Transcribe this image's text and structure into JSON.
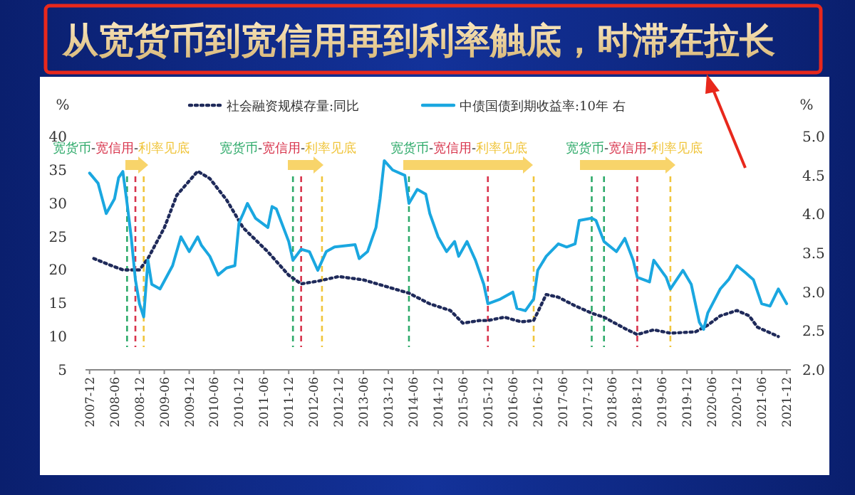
{
  "chart_data": {
    "type": "line",
    "title": "从宽货币到宽信用再到利率触底，时滞在拉长",
    "ylabel": "%",
    "y2label": "%",
    "xlim": [
      "2007-11",
      "2022-01"
    ],
    "xticks": [
      "2007-12",
      "2008-06",
      "2008-12",
      "2009-06",
      "2009-12",
      "2010-06",
      "2010-12",
      "2011-06",
      "2011-12",
      "2012-06",
      "2012-12",
      "2013-06",
      "2013-12",
      "2014-06",
      "2014-12",
      "2015-06",
      "2015-12",
      "2016-06",
      "2016-12",
      "2017-06",
      "2017-12",
      "2018-06",
      "2018-12",
      "2019-06",
      "2019-12",
      "2020-06",
      "2020-12",
      "2021-06",
      "2021-12"
    ],
    "ylim": [
      5,
      40
    ],
    "yticks": [
      5,
      10,
      15,
      20,
      25,
      30,
      35,
      40
    ],
    "y2lim": [
      2,
      5
    ],
    "y2ticks": [
      {
        "value": 2,
        "label": "2.0"
      },
      {
        "value": 2.5,
        "label": "2.5"
      },
      {
        "value": 3,
        "label": "3.0"
      },
      {
        "value": 3.5,
        "label": "3.5"
      },
      {
        "value": 4,
        "label": "4.0"
      },
      {
        "value": 4.5,
        "label": "4.5"
      },
      {
        "value": 5,
        "label": "5.0"
      }
    ],
    "legend": "top",
    "grid": false,
    "series": [
      {
        "name": "社会融资规模存量:同比",
        "color": "#1f2a5a",
        "line_style": "dotted",
        "x": [
          "2008-01",
          "2008-05",
          "2008-08",
          "2008-12",
          "2009-02",
          "2009-06",
          "2009-09",
          "2010-02",
          "2010-05",
          "2010-09",
          "2011-01",
          "2011-07",
          "2011-12",
          "2012-03",
          "2012-07",
          "2012-12",
          "2013-06",
          "2013-12",
          "2014-05",
          "2014-10",
          "2015-03",
          "2015-06",
          "2015-10",
          "2015-12",
          "2016-04",
          "2016-08",
          "2016-11",
          "2017-02",
          "2017-05",
          "2017-09",
          "2018-01",
          "2018-04",
          "2018-09",
          "2018-12",
          "2019-04",
          "2019-08",
          "2020-02",
          "2020-05",
          "2020-08",
          "2020-12",
          "2021-03",
          "2021-05",
          "2021-10"
        ],
        "values": [
          21.7,
          20.7,
          20.0,
          20.0,
          21.7,
          26.3,
          31.2,
          34.8,
          33.7,
          30.5,
          26.3,
          22.7,
          19.2,
          17.9,
          18.3,
          19.0,
          18.5,
          17.4,
          16.5,
          14.9,
          13.9,
          12.0,
          12.4,
          12.4,
          12.9,
          12.2,
          12.4,
          16.3,
          15.9,
          14.6,
          13.5,
          12.9,
          11.2,
          10.3,
          11.0,
          10.5,
          10.7,
          11.7,
          13.1,
          13.9,
          13.1,
          11.4,
          10.0
        ]
      },
      {
        "name": "中债国债到期收益率:10年 右",
        "color": "#1aa7e0",
        "line_style": "solid",
        "axis": "y2",
        "x": [
          "2007-12",
          "2008-02",
          "2008-04",
          "2008-06",
          "2008-07",
          "2008-08",
          "2008-09",
          "2008-10",
          "2008-11",
          "2008-12",
          "2009-01",
          "2009-02",
          "2009-03",
          "2009-05",
          "2009-08",
          "2009-10",
          "2009-12",
          "2010-02",
          "2010-03",
          "2010-05",
          "2010-07",
          "2010-09",
          "2010-11",
          "2010-12",
          "2011-01",
          "2011-02",
          "2011-04",
          "2011-07",
          "2011-08",
          "2011-09",
          "2011-12",
          "2012-01",
          "2012-03",
          "2012-05",
          "2012-07",
          "2012-09",
          "2012-11",
          "2013-04",
          "2013-05",
          "2013-07",
          "2013-09",
          "2013-10",
          "2013-11",
          "2014-01",
          "2014-04",
          "2014-05",
          "2014-07",
          "2014-09",
          "2014-10",
          "2014-12",
          "2015-02",
          "2015-04",
          "2015-05",
          "2015-07",
          "2015-09",
          "2015-11",
          "2015-12",
          "2016-03",
          "2016-06",
          "2016-07",
          "2016-09",
          "2016-11",
          "2016-12",
          "2017-02",
          "2017-05",
          "2017-07",
          "2017-09",
          "2017-10",
          "2018-01",
          "2018-02",
          "2018-04",
          "2018-07",
          "2018-09",
          "2018-11",
          "2018-12",
          "2019-03",
          "2019-04",
          "2019-07",
          "2019-08",
          "2019-11",
          "2020-01",
          "2020-03",
          "2020-04",
          "2020-05",
          "2020-08",
          "2020-10",
          "2020-12",
          "2021-02",
          "2021-04",
          "2021-06",
          "2021-08",
          "2021-10",
          "2021-12"
        ],
        "values": [
          4.53,
          4.4,
          4.01,
          4.2,
          4.47,
          4.55,
          4.14,
          3.71,
          3.16,
          2.85,
          2.68,
          3.41,
          3.1,
          3.04,
          3.34,
          3.71,
          3.52,
          3.71,
          3.6,
          3.46,
          3.22,
          3.31,
          3.34,
          3.89,
          4.01,
          4.14,
          3.95,
          3.83,
          4.1,
          4.07,
          3.65,
          3.41,
          3.55,
          3.52,
          3.28,
          3.52,
          3.58,
          3.61,
          3.43,
          3.52,
          3.83,
          4.2,
          4.69,
          4.57,
          4.5,
          4.14,
          4.32,
          4.26,
          4.01,
          3.71,
          3.52,
          3.65,
          3.46,
          3.65,
          3.41,
          3.1,
          2.85,
          2.91,
          3.0,
          2.79,
          2.76,
          2.91,
          3.28,
          3.46,
          3.62,
          3.58,
          3.62,
          3.92,
          3.95,
          3.92,
          3.65,
          3.52,
          3.69,
          3.41,
          3.19,
          3.13,
          3.41,
          3.19,
          3.04,
          3.28,
          3.1,
          2.61,
          2.52,
          2.73,
          3.04,
          3.16,
          3.34,
          3.25,
          3.16,
          2.85,
          2.82,
          3.04,
          2.85
        ]
      }
    ],
    "ref_lines": [
      {
        "axis": "x",
        "value": "2008-09",
        "color": "#2eaa6a",
        "line_style": "dashed"
      },
      {
        "axis": "x",
        "value": "2008-11",
        "color": "#d8344c",
        "line_style": "dashed"
      },
      {
        "axis": "x",
        "value": "2009-01",
        "color": "#f0c53c",
        "line_style": "dashed"
      },
      {
        "axis": "x",
        "value": "2012-01",
        "color": "#2eaa6a",
        "line_style": "dashed"
      },
      {
        "axis": "x",
        "value": "2012-03",
        "color": "#d8344c",
        "line_style": "dashed"
      },
      {
        "axis": "x",
        "value": "2012-08",
        "color": "#f0c53c",
        "line_style": "dashed"
      },
      {
        "axis": "x",
        "value": "2014-05",
        "color": "#2eaa6a",
        "line_style": "dashed"
      },
      {
        "axis": "x",
        "value": "2015-12",
        "color": "#d8344c",
        "line_style": "dashed"
      },
      {
        "axis": "x",
        "value": "2016-11",
        "color": "#f0c53c",
        "line_style": "dashed"
      },
      {
        "axis": "x",
        "value": "2018-01",
        "color": "#2eaa6a",
        "line_style": "dashed"
      },
      {
        "axis": "x",
        "value": "2018-04",
        "color": "#2eaa6a",
        "line_style": "dashed"
      },
      {
        "axis": "x",
        "value": "2018-12",
        "color": "#d8344c",
        "line_style": "dashed"
      },
      {
        "axis": "x",
        "value": "2019-08",
        "color": "#f0c53c",
        "line_style": "dashed"
      }
    ],
    "annotations": [
      "宽货币-宽信用-利率见底",
      "宽货币-宽信用-利率见底",
      "宽货币-宽信用-利率见底",
      "宽货币-宽信用-利率见底"
    ]
  }
}
